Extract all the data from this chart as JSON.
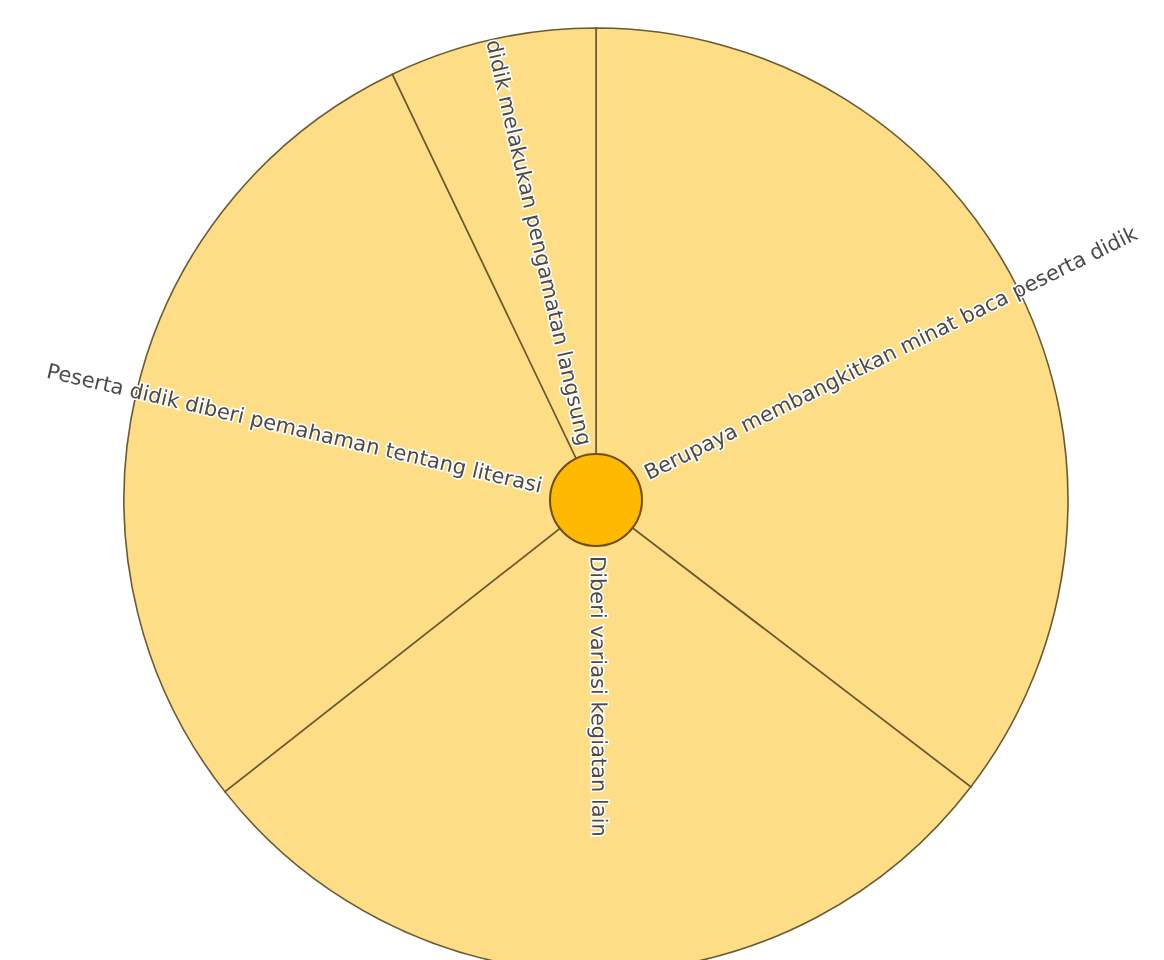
{
  "chart_data": {
    "type": "pie",
    "categories": [
      "Berupaya membangkitkan minat baca peserta didik",
      "Diberi variasi kegiatan lain",
      "Peserta didik diberi pemahaman tentang literasi",
      "didik melakukan pengamatan langsung"
    ],
    "values": [
      35.4,
      29.0,
      28.5,
      7.1
    ],
    "colors": [
      "#fedd87",
      "#fedd87",
      "#fedd87",
      "#fedd87"
    ],
    "legend": false
  }
}
